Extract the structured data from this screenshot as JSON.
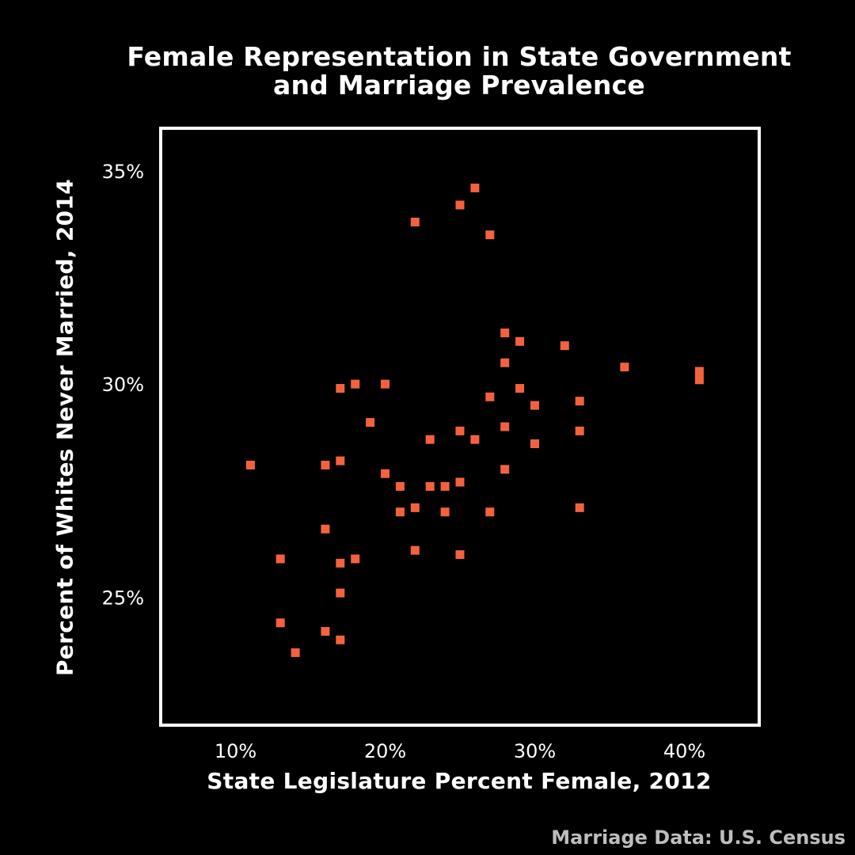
{
  "title_line1": "Female Representation in State Government",
  "title_line2": "and Marriage Prevalence",
  "source": "Marriage Data: U.S. Census",
  "chart_data": {
    "type": "scatter",
    "title": "Female Representation in State Government and Marriage Prevalence",
    "xlabel": "State Legislature Percent Female, 2012",
    "ylabel": "Percent of Whites Never Married, 2014",
    "xlim": [
      5,
      45
    ],
    "ylim": [
      22,
      36
    ],
    "x_ticks": [
      10,
      20,
      30,
      40
    ],
    "x_tick_labels": [
      "10%",
      "20%",
      "30%",
      "40%"
    ],
    "y_ticks": [
      25,
      30,
      35
    ],
    "y_tick_labels": [
      "25%",
      "30%",
      "35%"
    ],
    "grid": false,
    "marker_color": "#f4623d",
    "background": "#000000",
    "points": [
      {
        "x": 26,
        "y": 34.6
      },
      {
        "x": 25,
        "y": 34.2
      },
      {
        "x": 22,
        "y": 33.8
      },
      {
        "x": 27,
        "y": 33.5
      },
      {
        "x": 28,
        "y": 31.2
      },
      {
        "x": 29,
        "y": 31.0
      },
      {
        "x": 32,
        "y": 30.9
      },
      {
        "x": 28,
        "y": 30.5
      },
      {
        "x": 36,
        "y": 30.4
      },
      {
        "x": 41,
        "y": 30.3
      },
      {
        "x": 41,
        "y": 30.1
      },
      {
        "x": 17,
        "y": 29.9
      },
      {
        "x": 18,
        "y": 30.0
      },
      {
        "x": 20,
        "y": 30.0
      },
      {
        "x": 29,
        "y": 29.9
      },
      {
        "x": 27,
        "y": 29.7
      },
      {
        "x": 33,
        "y": 29.6
      },
      {
        "x": 30,
        "y": 29.5
      },
      {
        "x": 19,
        "y": 29.1
      },
      {
        "x": 28,
        "y": 29.0
      },
      {
        "x": 25,
        "y": 28.9
      },
      {
        "x": 33,
        "y": 28.9
      },
      {
        "x": 23,
        "y": 28.7
      },
      {
        "x": 26,
        "y": 28.7
      },
      {
        "x": 30,
        "y": 28.6
      },
      {
        "x": 17,
        "y": 28.2
      },
      {
        "x": 11,
        "y": 28.1
      },
      {
        "x": 16,
        "y": 28.1
      },
      {
        "x": 28,
        "y": 28.0
      },
      {
        "x": 20,
        "y": 27.9
      },
      {
        "x": 25,
        "y": 27.7
      },
      {
        "x": 21,
        "y": 27.6
      },
      {
        "x": 23,
        "y": 27.6
      },
      {
        "x": 24,
        "y": 27.6
      },
      {
        "x": 22,
        "y": 27.1
      },
      {
        "x": 33,
        "y": 27.1
      },
      {
        "x": 21,
        "y": 27.0
      },
      {
        "x": 24,
        "y": 27.0
      },
      {
        "x": 27,
        "y": 27.0
      },
      {
        "x": 16,
        "y": 26.6
      },
      {
        "x": 22,
        "y": 26.1
      },
      {
        "x": 25,
        "y": 26.0
      },
      {
        "x": 13,
        "y": 25.9
      },
      {
        "x": 18,
        "y": 25.9
      },
      {
        "x": 17,
        "y": 25.8
      },
      {
        "x": 17,
        "y": 25.1
      },
      {
        "x": 13,
        "y": 24.4
      },
      {
        "x": 16,
        "y": 24.2
      },
      {
        "x": 17,
        "y": 24.0
      },
      {
        "x": 14,
        "y": 23.7
      }
    ]
  }
}
